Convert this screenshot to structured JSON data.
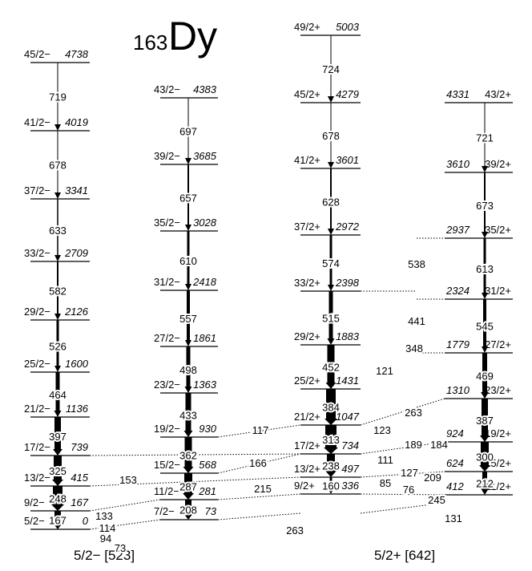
{
  "title": {
    "mass": "163",
    "element": "Dy"
  },
  "bands": [
    {
      "levels": [
        {
          "spin": "45/2−",
          "energy": "4738"
        },
        {
          "spin": "41/2−",
          "energy": "4019"
        },
        {
          "spin": "37/2−",
          "energy": "3341"
        },
        {
          "spin": "33/2−",
          "energy": "2709"
        },
        {
          "spin": "29/2−",
          "energy": "2126"
        },
        {
          "spin": "25/2−",
          "energy": "1600"
        },
        {
          "spin": "21/2−",
          "energy": "1136"
        },
        {
          "spin": "17/2−",
          "energy": "739"
        },
        {
          "spin": "13/2−",
          "energy": "415"
        },
        {
          "spin": "9/2−",
          "energy": "167"
        },
        {
          "spin": "5/2−",
          "energy": "0"
        }
      ],
      "transitions": [
        "719",
        "678",
        "633",
        "582",
        "526",
        "464",
        "397",
        "325",
        "248",
        "167"
      ]
    },
    {
      "levels": [
        {
          "spin": "43/2−",
          "energy": "4383"
        },
        {
          "spin": "39/2−",
          "energy": "3685"
        },
        {
          "spin": "35/2−",
          "energy": "3028"
        },
        {
          "spin": "31/2−",
          "energy": "2418"
        },
        {
          "spin": "27/2−",
          "energy": "1861"
        },
        {
          "spin": "23/2−",
          "energy": "1363"
        },
        {
          "spin": "19/2−",
          "energy": "930"
        },
        {
          "spin": "15/2−",
          "energy": "568"
        },
        {
          "spin": "11/2−",
          "energy": "281"
        },
        {
          "spin": "7/2−",
          "energy": "73"
        }
      ],
      "transitions": [
        "697",
        "657",
        "610",
        "557",
        "498",
        "433",
        "362",
        "287",
        "208"
      ]
    },
    {
      "levels": [
        {
          "spin": "49/2+",
          "energy": "5003"
        },
        {
          "spin": "45/2+",
          "energy": "4279"
        },
        {
          "spin": "41/2+",
          "energy": "3601"
        },
        {
          "spin": "37/2+",
          "energy": "2972"
        },
        {
          "spin": "33/2+",
          "energy": "2398"
        },
        {
          "spin": "29/2+",
          "energy": "1883"
        },
        {
          "spin": "25/2+",
          "energy": "1431"
        },
        {
          "spin": "21/2+",
          "energy": "1047"
        },
        {
          "spin": "17/2+",
          "energy": "734"
        },
        {
          "spin": "13/2+",
          "energy": "497"
        },
        {
          "spin": "9/2+",
          "energy": "336"
        }
      ],
      "transitions": [
        "724",
        "678",
        "628",
        "574",
        "515",
        "452",
        "384",
        "313",
        "238",
        "160"
      ]
    },
    {
      "levels": [
        {
          "spin": "43/2+",
          "energy": "4331"
        },
        {
          "spin": "39/2+",
          "energy": "3610"
        },
        {
          "spin": "35/2+",
          "energy": "2937"
        },
        {
          "spin": "31/2+",
          "energy": "2324"
        },
        {
          "spin": "27/2+",
          "energy": "1779"
        },
        {
          "spin": "23/2+",
          "energy": "1310"
        },
        {
          "spin": "19/2+",
          "energy": "924"
        },
        {
          "spin": "15/2+",
          "energy": "624"
        },
        {
          "spin": "11/2+",
          "energy": "412"
        }
      ],
      "transitions": [
        "721",
        "673",
        "613",
        "545",
        "469",
        "387",
        "300",
        "212"
      ]
    }
  ],
  "interband": [
    "94",
    "73",
    "133",
    "114",
    "153",
    "166",
    "117",
    "215",
    "263",
    "85",
    "76",
    "245",
    "131",
    "209",
    "127",
    "111",
    "189",
    "184",
    "123",
    "263",
    "121",
    "348",
    "441",
    "538"
  ],
  "band_labels": [
    "5/2− [523]",
    "5/2+ [642]"
  ]
}
